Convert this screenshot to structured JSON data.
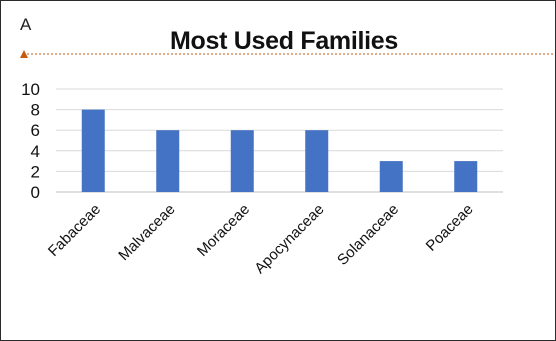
{
  "panel_label": "A",
  "chart_data": {
    "type": "bar",
    "title": "Most Used Families",
    "xlabel": "",
    "ylabel": "",
    "categories": [
      "Fabaceae",
      "Malvaceae",
      "Moraceae",
      "Apocynaceae",
      "Solanaceae",
      "Poaceae"
    ],
    "values": [
      8,
      6,
      6,
      6,
      3,
      3
    ],
    "ylim": [
      0,
      10
    ],
    "yticks": [
      0,
      2,
      4,
      6,
      8,
      10
    ],
    "grid": true,
    "legend": "none",
    "bar_color": "#4472c4",
    "grid_color": "#d9d9d9",
    "selection_line_color": "#c55a11"
  }
}
